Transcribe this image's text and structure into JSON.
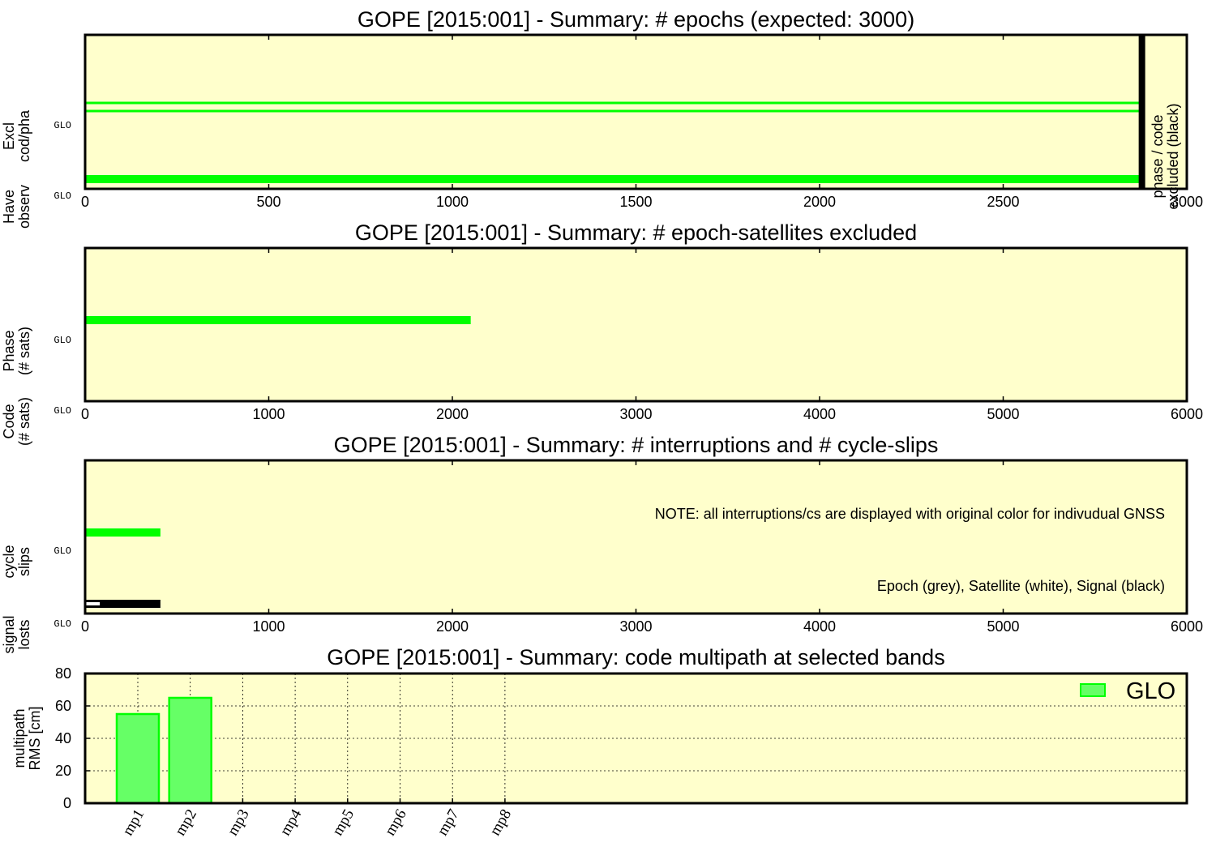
{
  "colors": {
    "background": "#ffffcc",
    "glo": "#00ff00",
    "glo_fill": "#66ff66",
    "excluded": "#000000",
    "epoch_interruption": "#bebebe",
    "satellite_interruption": "#ffffff",
    "signal_interruption": "#000000"
  },
  "chart_data": [
    {
      "id": "epochs",
      "type": "bar",
      "orientation": "horizontal",
      "title": "GOPE [2015:001] - Summary: # epochs (expected: 3000)",
      "xlim": [
        0,
        3000
      ],
      "xticks": [
        0,
        500,
        1000,
        1500,
        2000,
        2500,
        3000
      ],
      "rows": [
        {
          "label": "Have observ",
          "system": "GLO",
          "value": 2875,
          "style": "solid"
        },
        {
          "label": "Excl cod/pha",
          "system": "GLO",
          "value": 2875,
          "style": "outline"
        }
      ],
      "excluded_marker": {
        "x": 2880,
        "label_lines": [
          "phase / code",
          "excluded (black)"
        ]
      }
    },
    {
      "id": "excluded",
      "type": "bar",
      "orientation": "horizontal",
      "title": "GOPE [2015:001] - Summary: # epoch-satellites excluded",
      "xlim": [
        0,
        6000
      ],
      "xticks": [
        0,
        1000,
        2000,
        3000,
        4000,
        5000,
        6000
      ],
      "rows": [
        {
          "label": "Code (# sats)",
          "system": "GLO",
          "value": 0
        },
        {
          "label": "Phase (# sats)",
          "system": "GLO",
          "value": 2100
        }
      ]
    },
    {
      "id": "interruptions",
      "type": "bar",
      "orientation": "horizontal",
      "title": "GOPE [2015:001] - Summary: # interruptions and # cycle-slips",
      "xlim": [
        0,
        6000
      ],
      "xticks": [
        0,
        1000,
        2000,
        3000,
        4000,
        5000,
        6000
      ],
      "rows": [
        {
          "label": "signal losts",
          "system": "GLO",
          "segments": [
            {
              "type": "satellite",
              "value": 80
            },
            {
              "type": "signal",
              "value": 410
            }
          ]
        },
        {
          "label": "cycle slips",
          "system": "GLO",
          "value": 410
        }
      ],
      "notes": [
        "NOTE: all interruptions/cs are displayed with original color for indivudual GNSS",
        "Epoch (grey), Satellite (white), Signal (black)"
      ]
    },
    {
      "id": "multipath",
      "type": "bar",
      "title": "GOPE [2015:001] - Summary: code multipath at selected bands",
      "ylabel_lines": [
        "multipath",
        "RMS [cm]"
      ],
      "ylim": [
        0,
        80
      ],
      "yticks": [
        0,
        20,
        40,
        60,
        80
      ],
      "categories": [
        "mp1",
        "mp2",
        "mp3",
        "mp4",
        "mp5",
        "mp6",
        "mp7",
        "mp8"
      ],
      "series": [
        {
          "name": "GLO",
          "values": [
            55,
            65,
            null,
            null,
            null,
            null,
            null,
            null
          ]
        }
      ],
      "legend": "top-right",
      "grid": true
    }
  ]
}
